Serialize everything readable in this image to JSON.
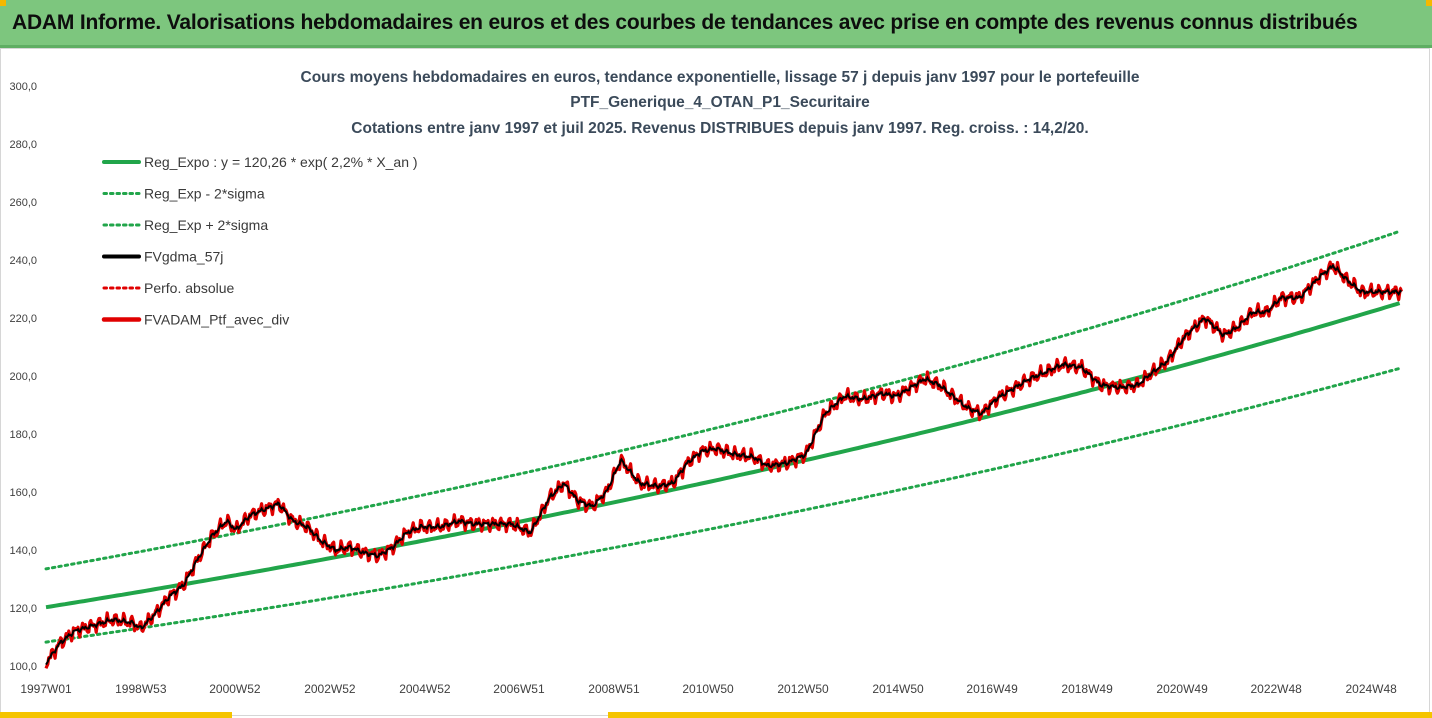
{
  "banner": {
    "title": "ADAM Informe. Valorisations hebdomadaires en euros et des courbes de tendances avec prise en compte des revenus connus distribués"
  },
  "colors": {
    "banner_bg": "#7dc67e",
    "trend": "#21a54a",
    "bands": "#21a54a",
    "smooth": "#000000",
    "perf": "#e00000",
    "portfolio": "#e00000"
  },
  "chart_data": {
    "type": "line",
    "title_lines": [
      "Cours moyens hebdomadaires en euros, tendance exponentielle, lissage 57 j depuis janv 1997 pour le portefeuille",
      "PTF_Generique_4_OTAN_P1_Securitaire",
      "Cotations entre janv 1997 et juil 2025. Revenus DISTRIBUES depuis janv 1997. Reg. croiss. : 14,2/20."
    ],
    "xlabel": "",
    "ylabel": "",
    "x_range": [
      "1997W01",
      "2025W29"
    ],
    "ylim": [
      100,
      300
    ],
    "y_ticks": [
      "100,0",
      "120,0",
      "140,0",
      "160,0",
      "180,0",
      "200,0",
      "220,0",
      "240,0",
      "260,0",
      "280,0",
      "300,0"
    ],
    "x_ticks": [
      "1997W01",
      "1998W53",
      "2000W52",
      "2002W52",
      "2004W52",
      "2006W51",
      "2008W51",
      "2010W50",
      "2012W50",
      "2014W50",
      "2016W49",
      "2018W49",
      "2020W49",
      "2022W48",
      "2024W48"
    ],
    "grid": false,
    "legend_position": "top-left",
    "legend": [
      "Reg_Expo : y = 120,26 * exp( 2,2% *  X_an )",
      "Reg_Exp - 2*sigma",
      "Reg_Exp + 2*sigma",
      "FVgdma_57j",
      "Perfo. absolue",
      "FVADAM_Ptf_avec_div"
    ],
    "regression": {
      "a": 120.26,
      "rate": 0.022,
      "band_lower_factor": 0.9,
      "band_upper_factor": 1.11
    },
    "series": [
      {
        "name": "FVADAM_Ptf_avec_div",
        "x_year": [
          1997.0,
          1997.3,
          1997.6,
          1998.0,
          1998.4,
          1998.8,
          1999.0,
          1999.3,
          1999.6,
          1999.9,
          2000.2,
          2000.5,
          2000.8,
          2001.0,
          2001.3,
          2001.6,
          2001.9,
          2002.2,
          2002.5,
          2002.8,
          2003.1,
          2003.4,
          2003.7,
          2004.0,
          2004.3,
          2004.6,
          2004.9,
          2005.3,
          2005.7,
          2006.0,
          2006.4,
          2006.8,
          2007.2,
          2007.6,
          2007.9,
          2008.2,
          2008.5,
          2008.8,
          2009.1,
          2009.5,
          2009.9,
          2010.2,
          2010.5,
          2010.8,
          2011.1,
          2011.5,
          2011.9,
          2012.2,
          2012.6,
          2013.0,
          2013.4,
          2013.8,
          2014.2,
          2014.6,
          2014.9,
          2015.2,
          2015.5,
          2015.8,
          2016.1,
          2016.4,
          2016.7,
          2017.0,
          2017.4,
          2017.7,
          2018.0,
          2018.4,
          2018.8,
          2019.2,
          2019.6,
          2020.0,
          2020.2,
          2020.6,
          2021.0,
          2021.4,
          2021.8,
          2022.1,
          2022.4,
          2022.7,
          2023.0,
          2023.4,
          2023.8,
          2024.1,
          2024.4,
          2024.7,
          2024.9,
          2025.2,
          2025.5
        ],
        "values": [
          101,
          108,
          112,
          114,
          116,
          115,
          113,
          118,
          124,
          128,
          137,
          145,
          150,
          147,
          152,
          154,
          156,
          150,
          148,
          143,
          140,
          141,
          139,
          138,
          141,
          146,
          148,
          148,
          150,
          149,
          149,
          149,
          146,
          158,
          163,
          157,
          155,
          160,
          171,
          163,
          162,
          163,
          170,
          174,
          175,
          173,
          172,
          169,
          170,
          173,
          187,
          193,
          192,
          194,
          193,
          196,
          199,
          197,
          193,
          189,
          187,
          192,
          196,
          199,
          201,
          204,
          203,
          197,
          196,
          197,
          200,
          205,
          214,
          220,
          214,
          217,
          222,
          222,
          227,
          227,
          234,
          238,
          233,
          229,
          229,
          229,
          229
        ]
      },
      {
        "name": "FVgdma_57j",
        "note_smoothed_of": "FVADAM_Ptf_avec_div"
      },
      {
        "name": "Perfo. absolue",
        "note_dotted_of": "FVADAM_Ptf_avec_div"
      }
    ]
  }
}
